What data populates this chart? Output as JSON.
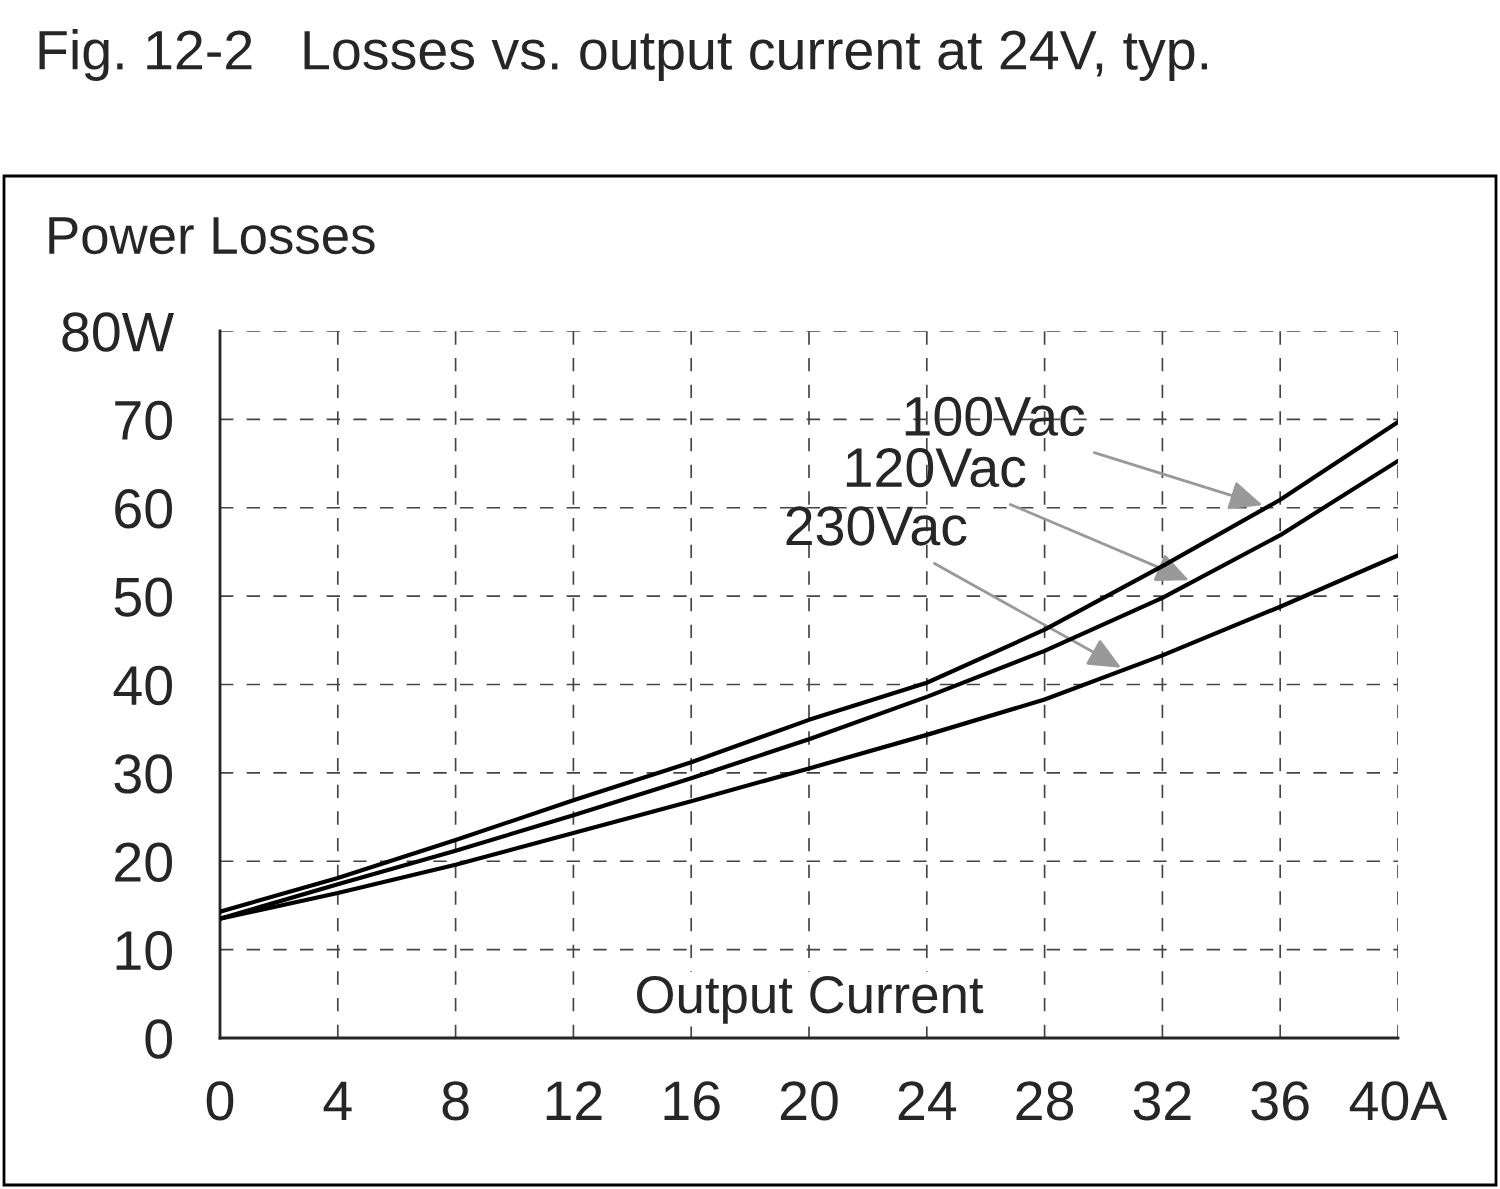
{
  "chart_data": {
    "type": "line",
    "title": "Fig. 12-2",
    "subtitle": "Losses vs. output current at 24V, typ.",
    "xlabel": "Output Current",
    "ylabel": "Power Losses",
    "x": [
      0,
      4,
      8,
      12,
      16,
      20,
      24,
      28,
      32,
      36,
      40
    ],
    "series": [
      {
        "color": "#000000",
        "values": [
          14.3,
          18.1,
          22.4,
          26.9,
          31.2,
          36.0,
          40.2,
          46.2,
          53.4,
          60.9,
          69.7
        ]
      },
      {
        "color": "#000000",
        "values": [
          13.5,
          17.4,
          21.2,
          25.2,
          29.4,
          33.8,
          38.6,
          43.8,
          49.8,
          56.9,
          65.3
        ]
      },
      {
        "color": "#000000",
        "values": [
          13.5,
          16.4,
          19.6,
          23.2,
          26.8,
          30.5,
          34.3,
          38.3,
          43.3,
          48.8,
          54.6
        ]
      }
    ],
    "annotations": [
      {
        "text": "100Vac",
        "x": 35.4,
        "y": 60.3
      },
      {
        "text": "120Vac",
        "x": 32.9,
        "y": 51.8
      },
      {
        "text": "230Vac",
        "x": 30.6,
        "y": 41.9
      }
    ],
    "xlim": [
      0,
      40
    ],
    "xticks": [
      0,
      4,
      8,
      12,
      16,
      20,
      24,
      28,
      32,
      36,
      {
        "value": 40,
        "label": "40A"
      }
    ],
    "ylim": [
      0,
      80
    ],
    "yticks": [
      0,
      10,
      20,
      30,
      40,
      50,
      60,
      70,
      {
        "value": 80,
        "label": "80W"
      }
    ],
    "grid": true,
    "line_style": "solid",
    "marker": "none"
  }
}
